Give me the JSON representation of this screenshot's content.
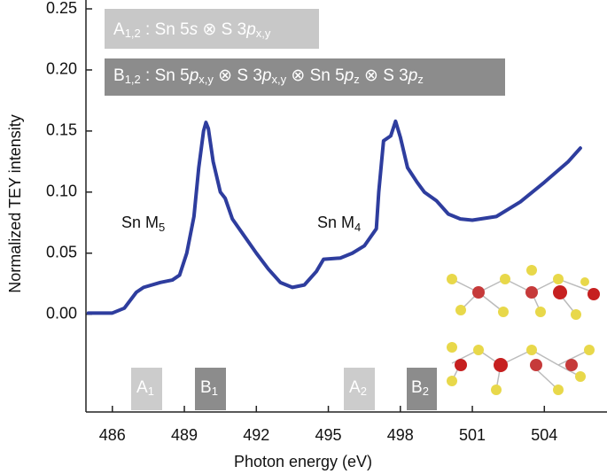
{
  "chart_data": {
    "type": "line",
    "x_label": "Photon energy (eV)",
    "y_label": "Normalized TEY intensity",
    "color": "#2e3d9e",
    "x": [
      485,
      486,
      486.5,
      487,
      487.3,
      488,
      488.5,
      488.8,
      489.1,
      489.4,
      489.6,
      489.8,
      489.9,
      490.0,
      490.2,
      490.5,
      490.7,
      491,
      491.5,
      492,
      492.5,
      493,
      493.5,
      494,
      494.5,
      494.8,
      495.5,
      496,
      496.5,
      497,
      497.1,
      497.3,
      497.6,
      497.8,
      498,
      498.3,
      498.7,
      499,
      499.5,
      500,
      500.5,
      501,
      502,
      503,
      504,
      505,
      505.5
    ],
    "values": [
      0.001,
      0.001,
      0.005,
      0.018,
      0.022,
      0.026,
      0.028,
      0.032,
      0.05,
      0.08,
      0.12,
      0.15,
      0.157,
      0.152,
      0.125,
      0.1,
      0.095,
      0.078,
      0.064,
      0.05,
      0.037,
      0.026,
      0.022,
      0.024,
      0.035,
      0.045,
      0.046,
      0.05,
      0.056,
      0.07,
      0.1,
      0.142,
      0.146,
      0.158,
      0.145,
      0.12,
      0.108,
      0.1,
      0.093,
      0.082,
      0.078,
      0.077,
      0.08,
      0.092,
      0.108,
      0.125,
      0.136
    ],
    "xlim": [
      484.9,
      506.5
    ],
    "ylim": [
      -0.08,
      0.25
    ],
    "xticks": [
      486,
      489,
      492,
      495,
      498,
      501,
      504
    ],
    "yticks": [
      {
        "value": 0,
        "label": "0.00"
      },
      0.05,
      {
        "value": 0.1,
        "label": "0.10"
      },
      0.15,
      {
        "value": 0.2,
        "label": "0.20"
      },
      0.25
    ],
    "annotations": {
      "legend_a": [
        "A",
        "1,2",
        " : Sn 5",
        "s",
        " ⊗ S 3",
        "p",
        "x,y"
      ],
      "legend_b": [
        "B",
        "1,2",
        " : Sn 5",
        "p",
        "x,y",
        " ⊗ S 3",
        "p",
        "x,y",
        " ⊗ Sn 5",
        "p",
        "z",
        " ⊗ S 3",
        "p",
        "z"
      ],
      "edge_m5": [
        "Sn M",
        "5"
      ],
      "edge_m4": [
        "Sn M",
        "4"
      ],
      "marker_a1": [
        "A",
        "1"
      ],
      "marker_b1": [
        "B",
        "1"
      ],
      "marker_a2": [
        "A",
        "2"
      ],
      "marker_b2": [
        "B",
        "2"
      ]
    }
  }
}
